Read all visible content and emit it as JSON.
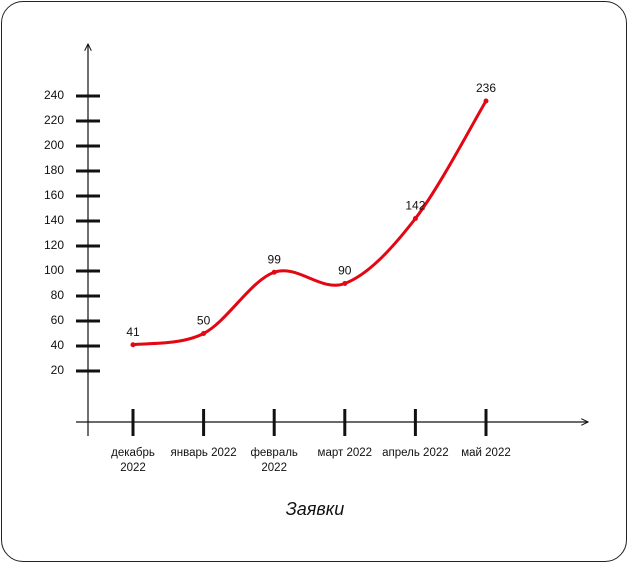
{
  "chart_data": {
    "type": "line",
    "title": "Заявки",
    "categories": [
      "декабрь 2022",
      "январь 2022",
      "февраль 2022",
      "март 2022",
      "апрель 2022",
      "май 2022"
    ],
    "series": [
      {
        "name": "Заявки",
        "color": "#e30613",
        "values": [
          41,
          50,
          99,
          90,
          142,
          236
        ]
      }
    ],
    "ylim": [
      -20,
      280
    ],
    "yticks": [
      20,
      40,
      60,
      80,
      100,
      120,
      140,
      160,
      180,
      200,
      220,
      240
    ]
  }
}
